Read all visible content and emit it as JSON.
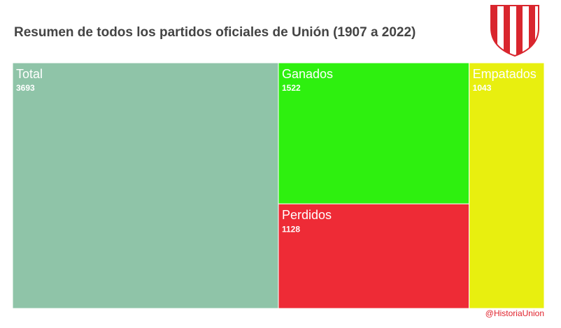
{
  "chart_data": {
    "type": "treemap",
    "title": "Resumen de todos los partidos oficiales de Unión (1907 a 2022)",
    "categories": [
      "Total",
      "Ganados",
      "Perdidos",
      "Empatados"
    ],
    "values": [
      3693,
      1522,
      1128,
      1043
    ],
    "colors": [
      "#8fc4a8",
      "#2ef00f",
      "#ee2b36",
      "#e8ef0f"
    ],
    "source": "@HistoriaUnion"
  }
}
